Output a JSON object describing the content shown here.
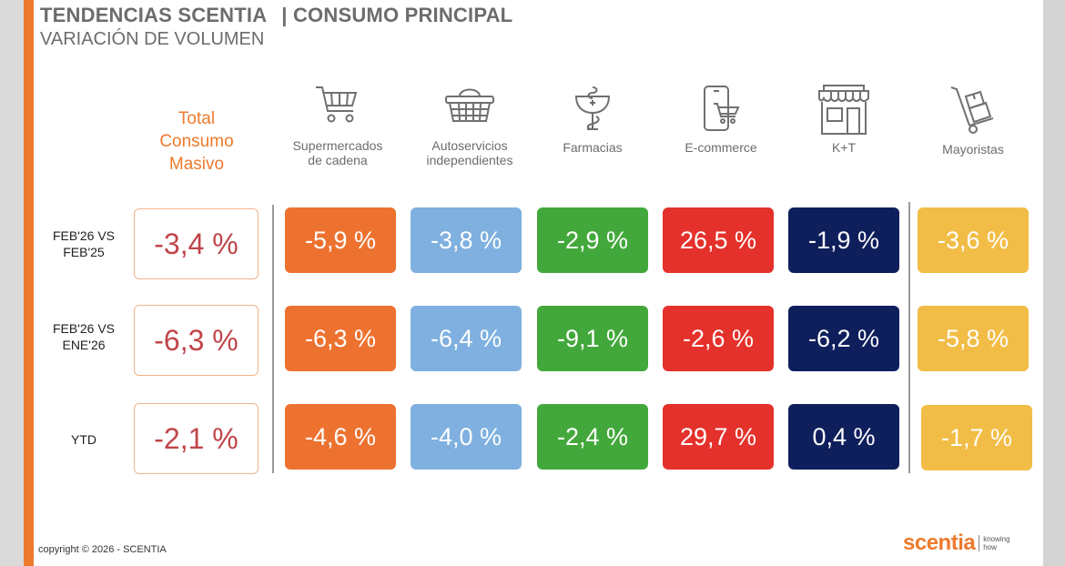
{
  "header": {
    "title_left": "TENDENCIAS SCENTIA",
    "title_right": "| CONSUMO PRINCIPAL",
    "subtitle": "VARIACIÓN DE VOLUMEN"
  },
  "total_header": [
    "Total",
    "Consumo",
    "Masivo"
  ],
  "channels": [
    {
      "label1": "Supermercados",
      "label2": "de cadena",
      "icon": "shopping-cart-icon",
      "color": "#ed7230"
    },
    {
      "label1": "Autoservicios",
      "label2": "independientes",
      "icon": "shopping-basket-icon",
      "color": "#7fb0df"
    },
    {
      "label1": "Farmacias",
      "label2": "",
      "icon": "pharmacy-icon",
      "color": "#43a83b"
    },
    {
      "label1": "E-commerce",
      "label2": "",
      "icon": "mobile-cart-icon",
      "color": "#e4312b"
    },
    {
      "label1": "K+T",
      "label2": "",
      "icon": "storefront-icon",
      "color": "#0f1f5c"
    },
    {
      "label1": "Mayoristas",
      "label2": "",
      "icon": "hand-truck-icon",
      "color": "#f2bd46"
    }
  ],
  "rows": [
    {
      "label1": "FEB'26 VS",
      "label2": "FEB'25",
      "total": "-3,4 %",
      "values": [
        "-5,9 %",
        "-3,8 %",
        "-2,9 %",
        "26,5 %",
        "-1,9 %",
        "-3,6 %"
      ]
    },
    {
      "label1": "FEB'26 VS",
      "label2": "ENE'26",
      "total": "-6,3 %",
      "values": [
        "-6,3 %",
        "-6,4 %",
        "-9,1 %",
        "-2,6 %",
        "-6,2 %",
        "-5,8 %"
      ]
    },
    {
      "label1": "YTD",
      "label2": "",
      "total": "-2,1 %",
      "values": [
        "-4,6 %",
        "-4,0 %",
        "-2,4 %",
        "29,7 %",
        "0,4 %",
        "-1,7 %"
      ]
    }
  ],
  "footer": {
    "copyright": "copyright © 2026 - SCENTIA"
  },
  "logo": {
    "brand": "scentia",
    "tag1": "knowing",
    "tag2": "how"
  }
}
